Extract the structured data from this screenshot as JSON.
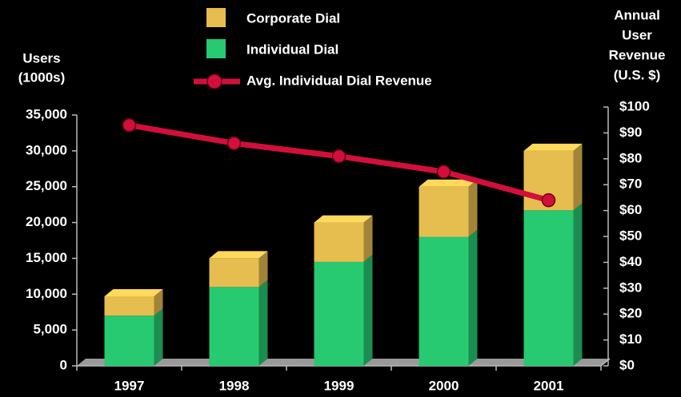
{
  "chart_data": {
    "type": "bar",
    "stacked": true,
    "y_label": [
      "Users",
      "(1000s)"
    ],
    "y2_label": [
      "Annual",
      "User",
      "Revenue",
      "(U.S. $)"
    ],
    "categories": [
      "1997",
      "1998",
      "1999",
      "2000",
      "2001"
    ],
    "series": [
      {
        "name": "Corporate Dial",
        "color": "#e6bd4f",
        "values": [
          2700,
          4000,
          5500,
          7000,
          8300
        ]
      },
      {
        "name": "Individual Dial",
        "color": "#27c971",
        "values": [
          7000,
          11000,
          14500,
          18000,
          21700
        ]
      },
      {
        "name": "Avg. Individual Dial Revenue",
        "type": "line",
        "axis": "y2",
        "color": "#d20f3c",
        "values": [
          93,
          86,
          81,
          75,
          64
        ]
      }
    ],
    "ylim": [
      0,
      35000
    ],
    "yticks": [
      0,
      {
        "value": 5000,
        "label": "5,000"
      },
      {
        "value": 10000,
        "label": "10,000"
      },
      {
        "value": 15000,
        "label": "15,000"
      },
      {
        "value": 20000,
        "label": "20,000"
      },
      {
        "value": 25000,
        "label": "25,000"
      },
      {
        "value": 30000,
        "label": "30,000"
      },
      {
        "value": 35000,
        "label": "35,000"
      }
    ],
    "y2lim": [
      0,
      100
    ],
    "y2ticks": [
      {
        "value": 0,
        "label": "$0"
      },
      {
        "value": 10,
        "label": "$10"
      },
      {
        "value": 20,
        "label": "$20"
      },
      {
        "value": 30,
        "label": "$30"
      },
      {
        "value": 40,
        "label": "$40"
      },
      {
        "value": 50,
        "label": "$50"
      },
      {
        "value": 60,
        "label": "$60"
      },
      {
        "value": 70,
        "label": "$70"
      },
      {
        "value": 80,
        "label": "$80"
      },
      {
        "value": 90,
        "label": "$90"
      },
      {
        "value": 100,
        "label": "$100"
      }
    ],
    "grid": false
  }
}
